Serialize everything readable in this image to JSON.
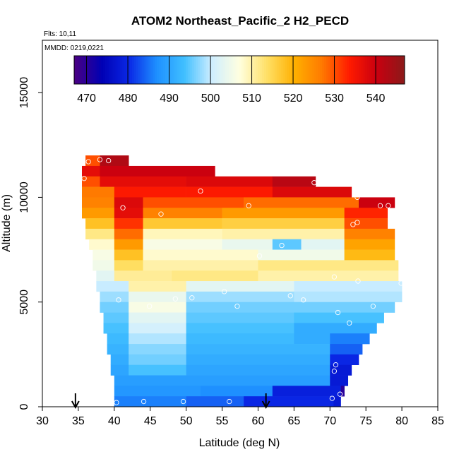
{
  "chart_data": {
    "type": "heatmap",
    "title": "ATOM2 Northeast_Pacific_2 H2_PECD",
    "subtitle_lines": [
      "Flts: 10,11",
      "MMDD: 0219,0221"
    ],
    "xlabel": "Latitude (deg N)",
    "ylabel": "Altitude (m)",
    "xlim": [
      30,
      85
    ],
    "ylim": [
      0,
      17500
    ],
    "x_ticks": [
      30,
      35,
      40,
      45,
      50,
      55,
      60,
      65,
      70,
      75,
      80,
      85
    ],
    "y_ticks": [
      0,
      5000,
      10000,
      15000
    ],
    "grid": false,
    "colorbar": {
      "range": [
        467,
        547
      ],
      "ticks": [
        470,
        480,
        490,
        500,
        510,
        520,
        530,
        540
      ],
      "colors": [
        "#4b0082",
        "#0000b4",
        "#0a28e6",
        "#1e90ff",
        "#40bfff",
        "#cfeeff",
        "#ffffe0",
        "#ffe066",
        "#ffb000",
        "#ff7a00",
        "#ff1a00",
        "#c80010",
        "#8b1a1a"
      ]
    },
    "cells": [
      [
        36,
        38,
        11500,
        12000,
        530
      ],
      [
        38,
        42,
        11500,
        12000,
        543
      ],
      [
        35.5,
        38,
        11000,
        11500,
        537
      ],
      [
        38,
        54,
        11000,
        11500,
        540
      ],
      [
        35.5,
        38,
        10500,
        11000,
        530
      ],
      [
        38,
        50,
        10500,
        11000,
        537
      ],
      [
        50,
        62,
        10500,
        11000,
        538
      ],
      [
        62,
        68,
        10500,
        11000,
        542
      ],
      [
        35.5,
        40,
        10000,
        10500,
        527
      ],
      [
        40,
        50,
        10000,
        10500,
        534
      ],
      [
        50,
        62,
        10000,
        10500,
        534
      ],
      [
        62,
        73,
        10000,
        10500,
        538
      ],
      [
        35.5,
        40,
        9500,
        10000,
        526
      ],
      [
        40,
        44,
        9500,
        10000,
        538
      ],
      [
        44,
        58,
        9500,
        10000,
        530
      ],
      [
        58,
        74,
        9500,
        10000,
        528
      ],
      [
        74,
        79,
        9500,
        10000,
        540
      ],
      [
        35.5,
        40,
        9000,
        9500,
        523
      ],
      [
        40,
        44,
        9000,
        9500,
        537
      ],
      [
        44,
        55,
        9000,
        9500,
        526
      ],
      [
        55,
        72,
        9000,
        9500,
        523
      ],
      [
        72,
        78,
        9000,
        9500,
        533
      ],
      [
        36,
        40,
        8500,
        9000,
        518
      ],
      [
        40,
        44,
        8500,
        9000,
        532
      ],
      [
        44,
        55,
        8500,
        9000,
        517
      ],
      [
        55,
        72,
        8500,
        9000,
        516
      ],
      [
        72,
        78,
        8500,
        9000,
        530
      ],
      [
        36,
        40,
        8000,
        8500,
        512
      ],
      [
        40,
        44,
        8000,
        8500,
        528
      ],
      [
        44,
        55,
        8000,
        8500,
        509
      ],
      [
        55,
        72,
        8000,
        8500,
        510
      ],
      [
        72,
        79,
        8000,
        8500,
        526
      ],
      [
        36.5,
        40,
        7500,
        8000,
        508
      ],
      [
        40,
        44,
        7500,
        8000,
        523
      ],
      [
        44,
        55,
        7500,
        8000,
        506
      ],
      [
        55,
        62,
        7500,
        8000,
        504
      ],
      [
        62,
        66,
        7500,
        8000,
        495
      ],
      [
        66,
        72,
        7500,
        8000,
        503
      ],
      [
        72,
        79,
        7500,
        8000,
        522
      ],
      [
        37,
        40,
        7000,
        7500,
        506
      ],
      [
        40,
        44,
        7000,
        7500,
        518
      ],
      [
        44,
        60,
        7000,
        7500,
        508
      ],
      [
        60,
        72,
        7000,
        7500,
        505
      ],
      [
        72,
        79,
        7000,
        7500,
        519
      ],
      [
        37,
        40,
        6500,
        7000,
        505
      ],
      [
        40,
        44,
        6500,
        7000,
        514
      ],
      [
        44,
        60,
        6500,
        7000,
        510
      ],
      [
        60,
        79.5,
        6500,
        7000,
        512
      ],
      [
        37.5,
        40,
        6000,
        6500,
        503
      ],
      [
        40,
        48,
        6000,
        6500,
        511
      ],
      [
        48,
        60,
        6000,
        6500,
        512
      ],
      [
        60,
        79.5,
        6000,
        6500,
        510
      ],
      [
        37.5,
        42,
        5500,
        6000,
        500
      ],
      [
        42,
        50,
        5500,
        6000,
        510
      ],
      [
        50,
        65,
        5500,
        6000,
        503
      ],
      [
        65,
        80,
        5500,
        6000,
        500
      ],
      [
        38,
        42,
        5000,
        5500,
        498
      ],
      [
        42,
        50,
        5000,
        5500,
        504
      ],
      [
        50,
        65,
        5000,
        5500,
        498
      ],
      [
        65,
        80,
        5000,
        5500,
        499
      ],
      [
        38,
        42,
        4500,
        5000,
        496
      ],
      [
        42,
        50,
        4500,
        5000,
        506
      ],
      [
        50,
        65,
        4500,
        5000,
        496
      ],
      [
        65,
        79,
        4500,
        5000,
        496
      ],
      [
        38.5,
        42,
        4000,
        4500,
        495
      ],
      [
        42,
        50,
        4000,
        4500,
        503
      ],
      [
        50,
        65,
        4000,
        4500,
        495
      ],
      [
        65,
        77.5,
        4000,
        4500,
        494
      ],
      [
        38.5,
        42,
        3500,
        4000,
        494
      ],
      [
        42,
        50,
        3500,
        4000,
        501
      ],
      [
        50,
        65,
        3500,
        4000,
        494
      ],
      [
        65,
        76.5,
        3500,
        4000,
        491
      ],
      [
        39,
        42,
        3000,
        3500,
        493
      ],
      [
        42,
        50,
        3000,
        3500,
        499
      ],
      [
        50,
        65,
        3000,
        3500,
        493
      ],
      [
        65,
        70,
        3000,
        3500,
        491
      ],
      [
        70,
        75.5,
        3000,
        3500,
        486
      ],
      [
        39,
        42,
        2500,
        3000,
        492
      ],
      [
        42,
        50,
        2500,
        3000,
        497
      ],
      [
        50,
        70,
        2500,
        3000,
        492
      ],
      [
        70,
        74.5,
        2500,
        3000,
        484
      ],
      [
        39.5,
        42,
        2000,
        2500,
        491
      ],
      [
        42,
        50,
        2000,
        2500,
        496
      ],
      [
        50,
        70,
        2000,
        2500,
        491
      ],
      [
        70,
        74,
        2000,
        2500,
        480
      ],
      [
        39.5,
        42,
        1500,
        2000,
        490
      ],
      [
        42,
        50,
        1500,
        2000,
        494
      ],
      [
        50,
        70,
        1500,
        2000,
        490
      ],
      [
        70,
        73,
        1500,
        2000,
        478
      ],
      [
        40,
        45,
        1000,
        1500,
        489
      ],
      [
        45,
        70,
        1000,
        1500,
        489
      ],
      [
        70,
        72.5,
        1000,
        1500,
        478
      ],
      [
        40,
        52,
        500,
        1000,
        488
      ],
      [
        52,
        62,
        500,
        1000,
        487
      ],
      [
        62,
        71.5,
        500,
        1000,
        479
      ],
      [
        71.5,
        72,
        500,
        1000,
        470
      ],
      [
        40,
        50,
        0,
        500,
        486
      ],
      [
        50,
        58,
        0,
        500,
        484
      ],
      [
        58,
        70.5,
        0,
        500,
        480
      ],
      [
        70.5,
        71.5,
        0,
        500,
        478
      ]
    ],
    "obs_points": [
      [
        36.4,
        11700
      ],
      [
        38,
        11800
      ],
      [
        39.2,
        11750
      ],
      [
        35.8,
        10900
      ],
      [
        52,
        10300
      ],
      [
        67.8,
        10700
      ],
      [
        73.8,
        10000
      ],
      [
        41.2,
        9500
      ],
      [
        46.5,
        9200
      ],
      [
        58.7,
        9600
      ],
      [
        77,
        9600
      ],
      [
        78.1,
        9600
      ],
      [
        73.2,
        8700
      ],
      [
        73.8,
        8800
      ],
      [
        63.3,
        7700
      ],
      [
        60.2,
        7200
      ],
      [
        70.6,
        6200
      ],
      [
        73.9,
        6000
      ],
      [
        79.9,
        5900
      ],
      [
        55.3,
        5500
      ],
      [
        64.5,
        5300
      ],
      [
        40.6,
        5100
      ],
      [
        48.5,
        5150
      ],
      [
        50.8,
        5200
      ],
      [
        66.3,
        5100
      ],
      [
        57.1,
        4800
      ],
      [
        76,
        4800
      ],
      [
        44.9,
        4800
      ],
      [
        71.1,
        4500
      ],
      [
        72.7,
        4000
      ],
      [
        70.8,
        2000
      ],
      [
        70.6,
        1700
      ],
      [
        71.4,
        600
      ],
      [
        70.3,
        400
      ],
      [
        40.3,
        200
      ],
      [
        44.1,
        250
      ],
      [
        49.6,
        250
      ],
      [
        56,
        250
      ]
    ],
    "arrows_x": [
      34.6,
      61.1
    ]
  }
}
